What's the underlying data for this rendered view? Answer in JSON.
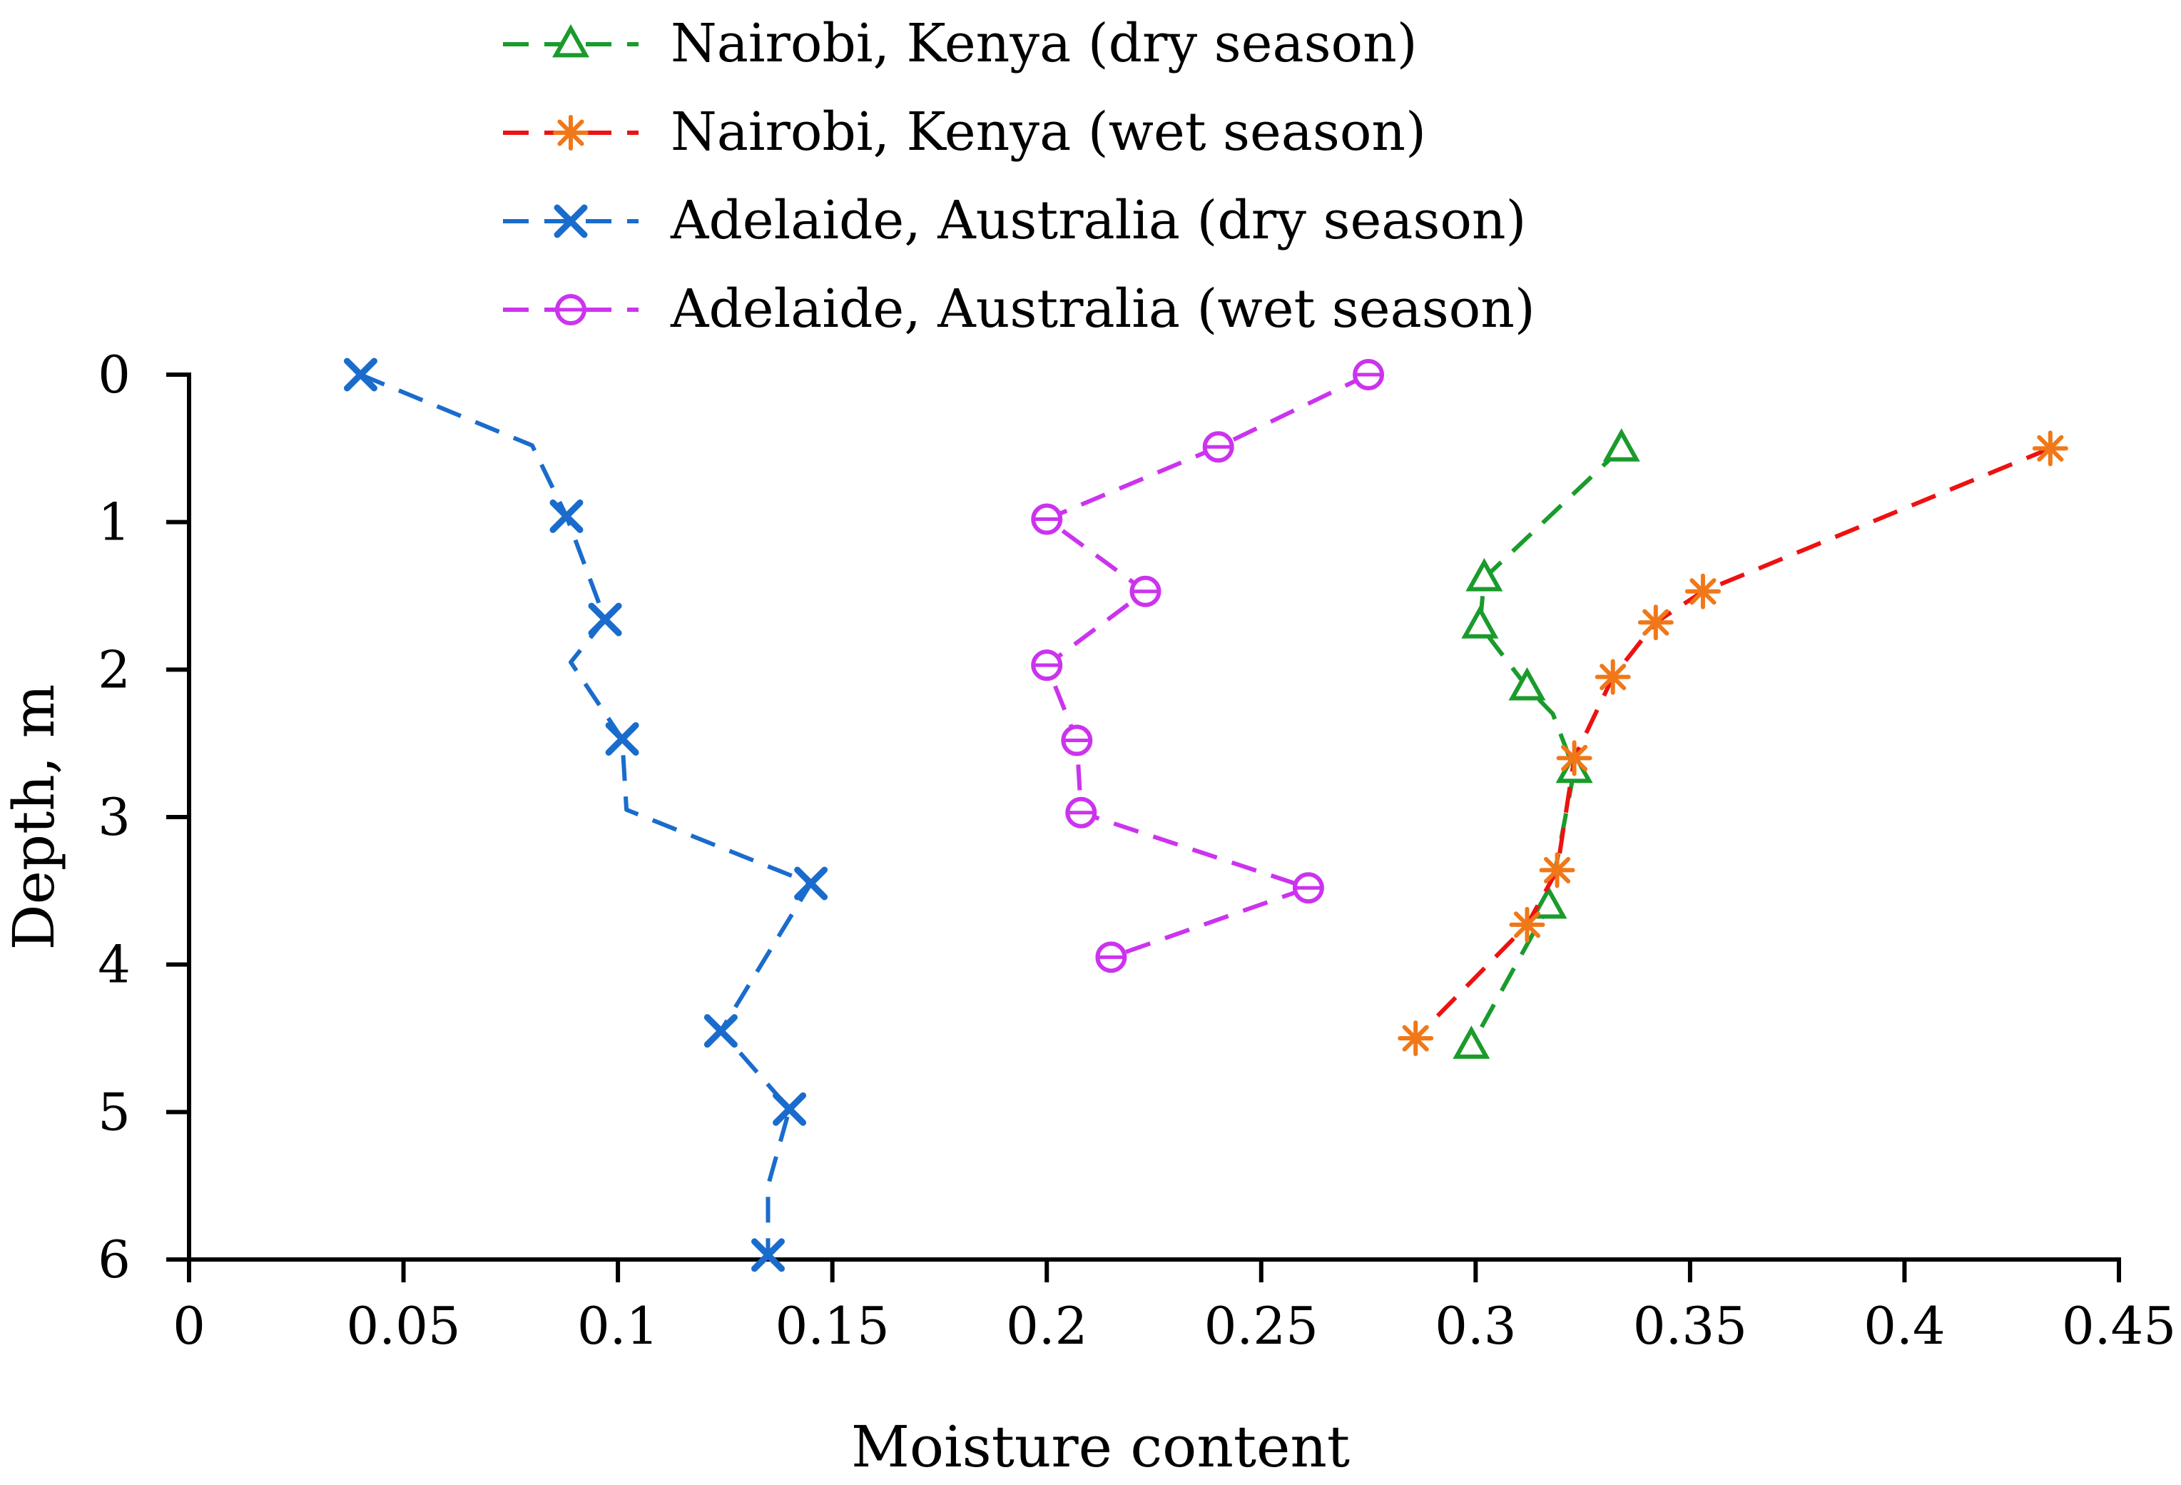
{
  "chart_data": {
    "type": "line",
    "xlabel": "Moisture content",
    "ylabel": "Depth, m",
    "xlim": [
      0,
      0.45
    ],
    "ylim": [
      0,
      6
    ],
    "y_inverted": true,
    "x_ticks": [
      0,
      0.05,
      0.1,
      0.15,
      0.2,
      0.25,
      0.3,
      0.35,
      0.4,
      0.45
    ],
    "x_tick_labels": [
      "0",
      "0.05",
      "0.1",
      "0.15",
      "0.2",
      "0.25",
      "0.3",
      "0.35",
      "0.4",
      "0.45"
    ],
    "y_ticks": [
      0,
      1,
      2,
      3,
      4,
      5,
      6
    ],
    "y_tick_labels": [
      "0",
      "1",
      "2",
      "3",
      "4",
      "5",
      "6"
    ],
    "legend_position": "top",
    "series": [
      {
        "name": "Nairobi, Kenya (dry season)",
        "line_color": "#1a9b2c",
        "marker_color": "#1a9b2c",
        "marker": "triangle",
        "line": [
          [
            0.334,
            0.5
          ],
          [
            0.302,
            1.38
          ],
          [
            0.301,
            1.7
          ],
          [
            0.312,
            2.12
          ],
          [
            0.318,
            2.3
          ],
          [
            0.323,
            2.68
          ],
          [
            0.317,
            3.6
          ],
          [
            0.299,
            4.55
          ]
        ],
        "markers": [
          [
            0.334,
            0.5
          ],
          [
            0.302,
            1.38
          ],
          [
            0.301,
            1.7
          ],
          [
            0.312,
            2.12
          ],
          [
            0.323,
            2.68
          ],
          [
            0.317,
            3.6
          ],
          [
            0.299,
            4.55
          ]
        ]
      },
      {
        "name": "Nairobi, Kenya (wet season)",
        "line_color": "#ee1111",
        "marker_color": "#f07818",
        "marker": "asterisk",
        "line": [
          [
            0.434,
            0.5
          ],
          [
            0.353,
            1.47
          ],
          [
            0.342,
            1.68
          ],
          [
            0.332,
            2.05
          ],
          [
            0.323,
            2.6
          ],
          [
            0.319,
            3.36
          ],
          [
            0.312,
            3.73
          ],
          [
            0.286,
            4.5
          ]
        ],
        "markers": [
          [
            0.434,
            0.5
          ],
          [
            0.353,
            1.47
          ],
          [
            0.342,
            1.68
          ],
          [
            0.332,
            2.05
          ],
          [
            0.323,
            2.6
          ],
          [
            0.319,
            3.36
          ],
          [
            0.312,
            3.73
          ],
          [
            0.286,
            4.5
          ]
        ]
      },
      {
        "name": "Adelaide, Australia (dry season)",
        "line_color": "#1a6ccc",
        "marker_color": "#1a6ccc",
        "marker": "x",
        "line": [
          [
            0.04,
            0.0
          ],
          [
            0.08,
            0.48
          ],
          [
            0.088,
            0.96
          ],
          [
            0.097,
            1.66
          ],
          [
            0.089,
            1.95
          ],
          [
            0.101,
            2.47
          ],
          [
            0.102,
            2.95
          ],
          [
            0.145,
            3.45
          ],
          [
            0.124,
            4.45
          ],
          [
            0.14,
            4.98
          ],
          [
            0.135,
            5.5
          ],
          [
            0.135,
            5.97
          ]
        ],
        "markers": [
          [
            0.04,
            0.0
          ],
          [
            0.088,
            0.96
          ],
          [
            0.097,
            1.66
          ],
          [
            0.101,
            2.47
          ],
          [
            0.145,
            3.45
          ],
          [
            0.124,
            4.45
          ],
          [
            0.14,
            4.98
          ],
          [
            0.135,
            5.97
          ]
        ]
      },
      {
        "name": "Adelaide, Australia (wet season)",
        "line_color": "#cc33ee",
        "marker_color": "#cc33ee",
        "marker": "circle",
        "line": [
          [
            0.275,
            0.0
          ],
          [
            0.24,
            0.49
          ],
          [
            0.2,
            0.98
          ],
          [
            0.223,
            1.47
          ],
          [
            0.2,
            1.97
          ],
          [
            0.207,
            2.48
          ],
          [
            0.208,
            2.97
          ],
          [
            0.261,
            3.48
          ],
          [
            0.215,
            3.95
          ]
        ],
        "markers": [
          [
            0.275,
            0.0
          ],
          [
            0.24,
            0.49
          ],
          [
            0.2,
            0.98
          ],
          [
            0.223,
            1.47
          ],
          [
            0.2,
            1.97
          ],
          [
            0.207,
            2.48
          ],
          [
            0.208,
            2.97
          ],
          [
            0.261,
            3.48
          ],
          [
            0.215,
            3.95
          ]
        ]
      }
    ]
  }
}
